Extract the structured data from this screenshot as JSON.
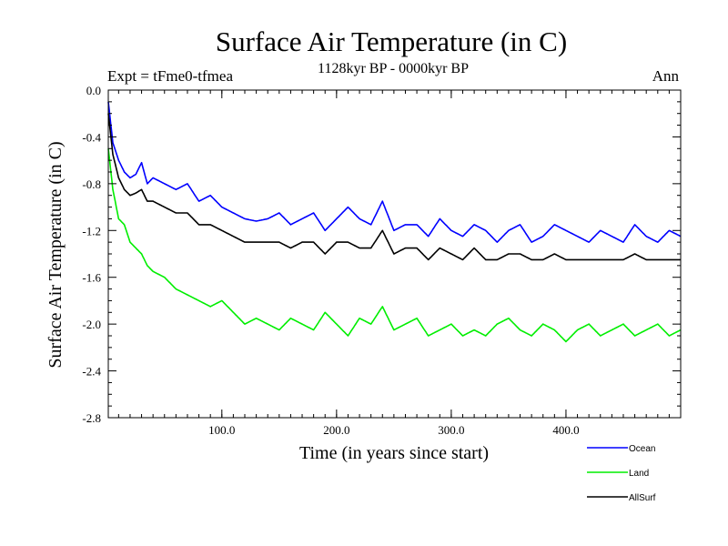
{
  "chart_data": {
    "type": "line",
    "title": "Surface Air Temperature (in C)",
    "left_label": "Expt = tFme0-tfmea",
    "center_label": "1128kyr BP - 0000kyr BP",
    "right_label": "Ann",
    "xlabel": "Time (in years since start)",
    "ylabel": "Surface Air Temperature (in C)",
    "xlim": [
      1,
      500
    ],
    "ylim": [
      -2.8,
      0.0
    ],
    "x_ticks": [
      100,
      200,
      300,
      400
    ],
    "x_tick_labels": [
      "100.0",
      "200.0",
      "300.0",
      "400.0"
    ],
    "y_ticks": [
      0.0,
      -0.4,
      -0.8,
      -1.2,
      -1.6,
      -2.0,
      -2.4,
      -2.8
    ],
    "y_tick_labels": [
      "0.0",
      "-0.4",
      "-0.8",
      "-1.2",
      "-1.6",
      "-2.0",
      "-2.4",
      "-2.8"
    ],
    "legend_position": "bottom-right, outside plot",
    "series": [
      {
        "name": "Ocean",
        "color": "#0000ff",
        "x": [
          1,
          5,
          10,
          15,
          20,
          25,
          30,
          35,
          40,
          50,
          60,
          70,
          80,
          90,
          100,
          110,
          120,
          130,
          140,
          150,
          160,
          170,
          180,
          190,
          200,
          210,
          220,
          230,
          240,
          250,
          260,
          270,
          280,
          290,
          300,
          310,
          320,
          330,
          340,
          350,
          360,
          370,
          380,
          390,
          400,
          410,
          420,
          430,
          440,
          450,
          460,
          470,
          480,
          490,
          500
        ],
        "values": [
          -0.1,
          -0.45,
          -0.6,
          -0.7,
          -0.75,
          -0.72,
          -0.62,
          -0.8,
          -0.75,
          -0.8,
          -0.85,
          -0.8,
          -0.95,
          -0.9,
          -1.0,
          -1.05,
          -1.1,
          -1.12,
          -1.1,
          -1.05,
          -1.15,
          -1.1,
          -1.05,
          -1.2,
          -1.1,
          -1.0,
          -1.1,
          -1.15,
          -0.95,
          -1.2,
          -1.15,
          -1.15,
          -1.25,
          -1.1,
          -1.2,
          -1.25,
          -1.15,
          -1.2,
          -1.3,
          -1.2,
          -1.15,
          -1.3,
          -1.25,
          -1.15,
          -1.2,
          -1.25,
          -1.3,
          -1.2,
          -1.25,
          -1.3,
          -1.15,
          -1.25,
          -1.3,
          -1.2,
          -1.25
        ]
      },
      {
        "name": "Land",
        "color": "#00ee00",
        "x": [
          1,
          5,
          10,
          15,
          20,
          25,
          30,
          35,
          40,
          50,
          60,
          70,
          80,
          90,
          100,
          110,
          120,
          130,
          140,
          150,
          160,
          170,
          180,
          190,
          200,
          210,
          220,
          230,
          240,
          250,
          260,
          270,
          280,
          290,
          300,
          310,
          320,
          330,
          340,
          350,
          360,
          370,
          380,
          390,
          400,
          410,
          420,
          430,
          440,
          450,
          460,
          470,
          480,
          490,
          500
        ],
        "values": [
          -0.5,
          -0.85,
          -1.1,
          -1.15,
          -1.3,
          -1.35,
          -1.4,
          -1.5,
          -1.55,
          -1.6,
          -1.7,
          -1.75,
          -1.8,
          -1.85,
          -1.8,
          -1.9,
          -2.0,
          -1.95,
          -2.0,
          -2.05,
          -1.95,
          -2.0,
          -2.05,
          -1.9,
          -2.0,
          -2.1,
          -1.95,
          -2.0,
          -1.85,
          -2.05,
          -2.0,
          -1.95,
          -2.1,
          -2.05,
          -2.0,
          -2.1,
          -2.05,
          -2.1,
          -2.0,
          -1.95,
          -2.05,
          -2.1,
          -2.0,
          -2.05,
          -2.15,
          -2.05,
          -2.0,
          -2.1,
          -2.05,
          -2.0,
          -2.1,
          -2.05,
          -2.0,
          -2.1,
          -2.05
        ]
      },
      {
        "name": "AllSurf",
        "color": "#000000",
        "x": [
          1,
          5,
          10,
          15,
          20,
          25,
          30,
          35,
          40,
          50,
          60,
          70,
          80,
          90,
          100,
          110,
          120,
          130,
          140,
          150,
          160,
          170,
          180,
          190,
          200,
          210,
          220,
          230,
          240,
          250,
          260,
          270,
          280,
          290,
          300,
          310,
          320,
          330,
          340,
          350,
          360,
          370,
          380,
          390,
          400,
          410,
          420,
          430,
          440,
          450,
          460,
          470,
          480,
          490,
          500
        ],
        "values": [
          -0.2,
          -0.55,
          -0.75,
          -0.85,
          -0.9,
          -0.88,
          -0.85,
          -0.95,
          -0.95,
          -1.0,
          -1.05,
          -1.05,
          -1.15,
          -1.15,
          -1.2,
          -1.25,
          -1.3,
          -1.3,
          -1.3,
          -1.3,
          -1.35,
          -1.3,
          -1.3,
          -1.4,
          -1.3,
          -1.3,
          -1.35,
          -1.35,
          -1.2,
          -1.4,
          -1.35,
          -1.35,
          -1.45,
          -1.35,
          -1.4,
          -1.45,
          -1.35,
          -1.45,
          -1.45,
          -1.4,
          -1.4,
          -1.45,
          -1.45,
          -1.4,
          -1.45,
          -1.45,
          -1.45,
          -1.45,
          -1.45,
          -1.45,
          -1.4,
          -1.45,
          -1.45,
          -1.45,
          -1.45
        ]
      }
    ]
  }
}
